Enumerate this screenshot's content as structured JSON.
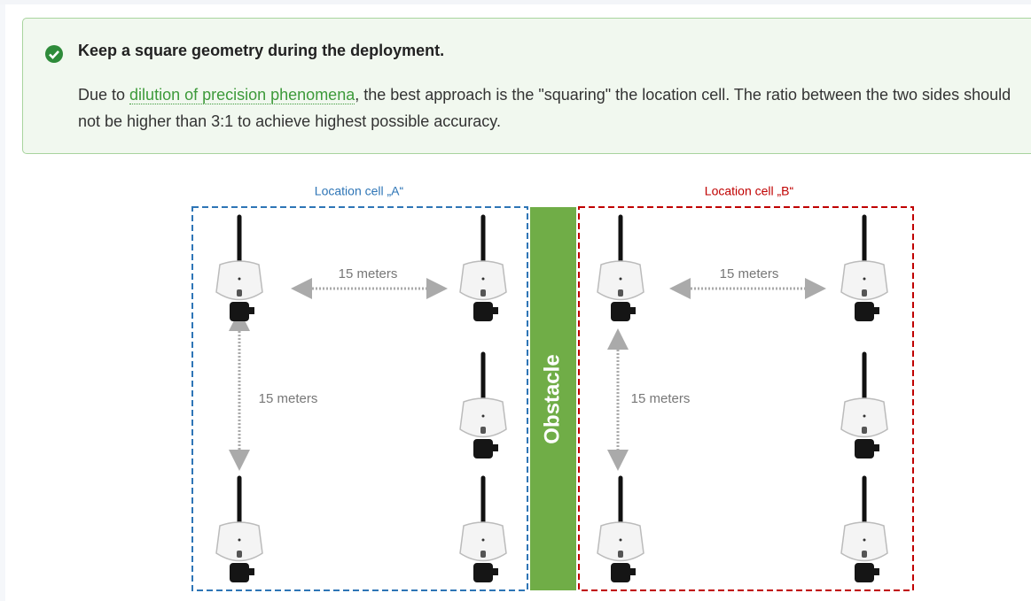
{
  "callout": {
    "title": "Keep a square geometry during the deployment.",
    "text_before": "Due to ",
    "link": "dilution of precision phenomena",
    "text_after": ", the best approach is the \"squaring\" the location cell. The ratio between the two sides should not be higher than 3:1 to achieve highest possible accuracy."
  },
  "diagram": {
    "cell_a_label": "Location cell „A“",
    "cell_b_label": "Location cell „B“",
    "obstacle": "Obstacle",
    "distances": [
      "15 meters",
      "15 meters",
      "15 meters",
      "15 meters"
    ]
  }
}
